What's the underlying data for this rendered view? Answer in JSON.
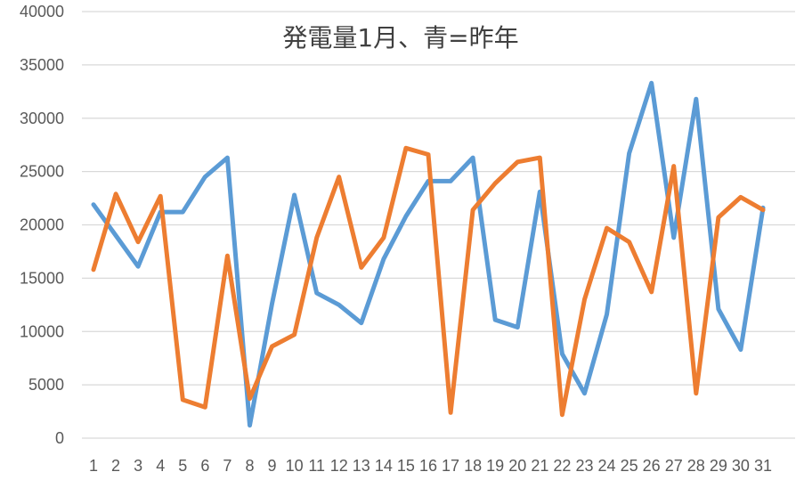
{
  "chart_data": {
    "type": "line",
    "title": "発電量1月、青=昨年",
    "xlabel": "",
    "ylabel": "",
    "categories": [
      "1",
      "2",
      "3",
      "4",
      "5",
      "6",
      "7",
      "8",
      "9",
      "10",
      "11",
      "12",
      "13",
      "14",
      "15",
      "16",
      "17",
      "18",
      "19",
      "20",
      "21",
      "22",
      "23",
      "24",
      "25",
      "26",
      "27",
      "28",
      "29",
      "30",
      "31"
    ],
    "ylim": [
      0,
      40000
    ],
    "yticks": [
      0,
      5000,
      10000,
      15000,
      20000,
      25000,
      30000,
      35000,
      40000
    ],
    "grid": true,
    "legend": "none",
    "series": [
      {
        "color": "#5B9BD5",
        "values": [
          21900,
          19000,
          16100,
          21200,
          21200,
          24500,
          26300,
          1200,
          12600,
          22800,
          13600,
          12500,
          10800,
          16800,
          20800,
          24100,
          24100,
          26300,
          11100,
          10400,
          23100,
          7900,
          4200,
          11600,
          26700,
          33300,
          18800,
          31800,
          12100,
          8300,
          21600
        ]
      },
      {
        "color": "#ED7D31",
        "values": [
          15800,
          22900,
          18400,
          22700,
          3600,
          2900,
          17100,
          3700,
          8600,
          9700,
          18800,
          24500,
          16000,
          18800,
          27200,
          26600,
          2400,
          21400,
          23900,
          25900,
          26300,
          2200,
          13000,
          19700,
          18400,
          13700,
          25500,
          4200,
          20700,
          22600,
          21400
        ]
      }
    ]
  }
}
